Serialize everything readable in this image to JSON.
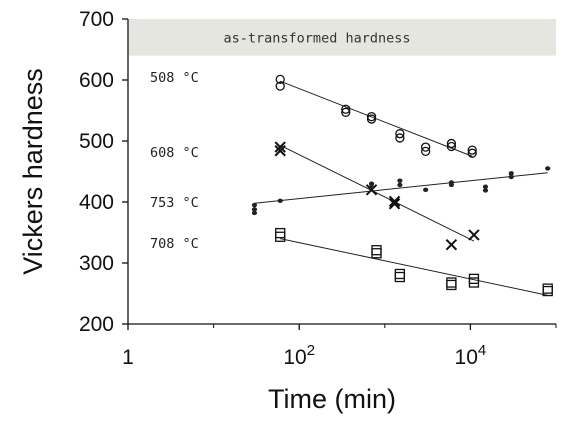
{
  "chart_data": {
    "type": "scatter",
    "xlabel": "Time (min)",
    "ylabel": "Vickers hardness",
    "xscale": "log",
    "xlim": [
      1,
      100000
    ],
    "ylim": [
      200,
      700
    ],
    "xticks": [
      {
        "value": 1,
        "base": "1",
        "exp": ""
      },
      {
        "value": 100,
        "base": "10",
        "exp": "2"
      },
      {
        "value": 10000,
        "base": "10",
        "exp": "4"
      }
    ],
    "yticks": [
      200,
      300,
      400,
      500,
      600,
      700
    ],
    "band": {
      "label": "as-transformed hardness",
      "ymin": 640,
      "ymax": 700,
      "color": "#e6e6e0"
    },
    "grid": false,
    "legend": "none",
    "series": [
      {
        "name": "508 °C",
        "label_y": 605,
        "marker": "circle",
        "points": [
          {
            "x": 60,
            "y": 601
          },
          {
            "x": 60,
            "y": 590
          },
          {
            "x": 350,
            "y": 552
          },
          {
            "x": 350,
            "y": 547
          },
          {
            "x": 700,
            "y": 540
          },
          {
            "x": 700,
            "y": 536
          },
          {
            "x": 1500,
            "y": 512
          },
          {
            "x": 1500,
            "y": 505
          },
          {
            "x": 3000,
            "y": 490
          },
          {
            "x": 3000,
            "y": 483
          },
          {
            "x": 6000,
            "y": 496
          },
          {
            "x": 6000,
            "y": 491
          },
          {
            "x": 10500,
            "y": 485
          },
          {
            "x": 10500,
            "y": 480
          }
        ],
        "fit": [
          [
            60,
            598
          ],
          [
            10500,
            475
          ]
        ]
      },
      {
        "name": "608 °C",
        "label_y": 482,
        "marker": "cross",
        "points": [
          {
            "x": 60,
            "y": 490
          },
          {
            "x": 60,
            "y": 484
          },
          {
            "x": 700,
            "y": 420
          },
          {
            "x": 1300,
            "y": 401
          },
          {
            "x": 1300,
            "y": 397
          },
          {
            "x": 6000,
            "y": 330
          },
          {
            "x": 11000,
            "y": 346
          }
        ],
        "fit": [
          [
            60,
            493
          ],
          [
            11000,
            336
          ]
        ]
      },
      {
        "name": "753 °C",
        "label_y": 400,
        "marker": "dot",
        "points": [
          {
            "x": 30,
            "y": 395
          },
          {
            "x": 30,
            "y": 388
          },
          {
            "x": 30,
            "y": 382
          },
          {
            "x": 60,
            "y": 402
          },
          {
            "x": 700,
            "y": 430
          },
          {
            "x": 700,
            "y": 425
          },
          {
            "x": 1500,
            "y": 435
          },
          {
            "x": 1500,
            "y": 428
          },
          {
            "x": 3000,
            "y": 420
          },
          {
            "x": 6000,
            "y": 432
          },
          {
            "x": 6000,
            "y": 428
          },
          {
            "x": 15000,
            "y": 425
          },
          {
            "x": 15000,
            "y": 419
          },
          {
            "x": 30000,
            "y": 447
          },
          {
            "x": 30000,
            "y": 441
          },
          {
            "x": 80000,
            "y": 455
          }
        ],
        "fit": [
          [
            30,
            398
          ],
          [
            80000,
            448
          ]
        ]
      },
      {
        "name": "708 °C",
        "label_y": 333,
        "marker": "square",
        "points": [
          {
            "x": 60,
            "y": 349
          },
          {
            "x": 60,
            "y": 343
          },
          {
            "x": 800,
            "y": 321
          },
          {
            "x": 800,
            "y": 316
          },
          {
            "x": 1500,
            "y": 282
          },
          {
            "x": 1500,
            "y": 277
          },
          {
            "x": 6000,
            "y": 268
          },
          {
            "x": 6000,
            "y": 264
          },
          {
            "x": 11000,
            "y": 274
          },
          {
            "x": 11000,
            "y": 268
          },
          {
            "x": 80000,
            "y": 258
          },
          {
            "x": 80000,
            "y": 254
          }
        ],
        "fit": [
          [
            60,
            340
          ],
          [
            80000,
            247
          ]
        ]
      }
    ]
  }
}
